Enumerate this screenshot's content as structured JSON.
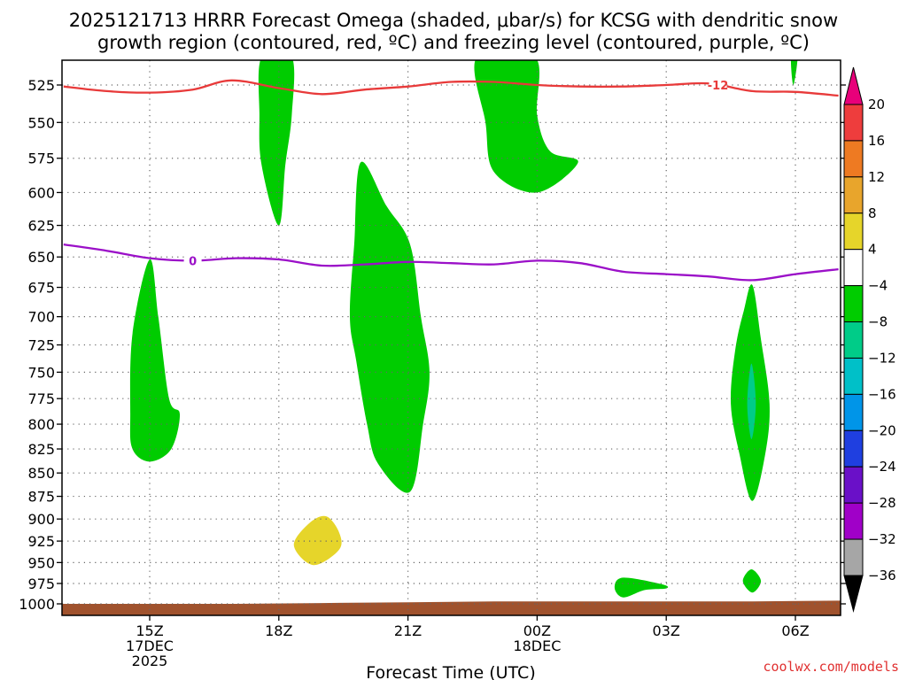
{
  "title_line1": "2025121713 HRRR Forecast Omega (shaded, μbar/s) for KCSG with dendritic snow",
  "title_line2": "growth region (contoured, red, ºC) and freezing level (contoured, purple, ºC)",
  "credit": "coolwx.com/models",
  "colors": {
    "frame": "#000000",
    "ground": "#a0522d",
    "dgz_contour": "#e83a3a",
    "freezing_contour": "#9b10c8",
    "grid": "#666666"
  },
  "chart_data": {
    "type": "time-height cross section",
    "xlabel": "Forecast Time (UTC)",
    "xlim_hours": [
      13,
      31
    ],
    "ylim_hpa": [
      1005,
      507
    ],
    "y_scale": "log-pressure",
    "grid": true,
    "yticks": [
      525,
      550,
      575,
      600,
      625,
      650,
      675,
      700,
      725,
      750,
      775,
      800,
      825,
      850,
      875,
      900,
      925,
      950,
      975,
      1000
    ],
    "xticks": [
      {
        "hour": 15,
        "lines": [
          "15Z",
          "17DEC",
          "2025"
        ]
      },
      {
        "hour": 18,
        "lines": [
          "18Z"
        ]
      },
      {
        "hour": 21,
        "lines": [
          "21Z"
        ]
      },
      {
        "hour": 24,
        "lines": [
          "00Z",
          "18DEC"
        ]
      },
      {
        "hour": 27,
        "lines": [
          "03Z"
        ]
      },
      {
        "hour": 30,
        "lines": [
          "06Z"
        ]
      }
    ],
    "colorbar": {
      "levels": [
        "20",
        "16",
        "12",
        "8",
        "4",
        "−4",
        "−8",
        "−12",
        "−16",
        "−20",
        "−24",
        "−28",
        "−32",
        "−36"
      ],
      "colors": [
        "#e8007a",
        "#ee3d3d",
        "#ee7a22",
        "#e8a52c",
        "#e6d52a",
        "#ffffff",
        "#00cc00",
        "#00cc88",
        "#00c0c8",
        "#0095e8",
        "#1f3fe0",
        "#6a10c8",
        "#a000c8",
        "#a6a6a6",
        "#000000"
      ]
    },
    "contours": [
      {
        "label": "-12",
        "color": "#e83a3a",
        "points": [
          [
            13,
            526
          ],
          [
            14,
            529
          ],
          [
            15,
            530
          ],
          [
            16,
            528
          ],
          [
            16.9,
            522
          ],
          [
            18,
            527
          ],
          [
            19,
            531
          ],
          [
            20,
            528
          ],
          [
            21,
            526
          ],
          [
            22,
            523
          ],
          [
            23,
            523
          ],
          [
            24,
            525
          ],
          [
            25,
            526
          ],
          [
            26,
            526
          ],
          [
            27,
            525
          ],
          [
            28,
            524
          ],
          [
            29,
            529
          ],
          [
            30,
            529.5
          ],
          [
            31,
            532
          ]
        ]
      },
      {
        "label": "0",
        "color": "#9b10c8",
        "points": [
          [
            13,
            640
          ],
          [
            14,
            645
          ],
          [
            15,
            651
          ],
          [
            16,
            653
          ],
          [
            17,
            651
          ],
          [
            18,
            652
          ],
          [
            19,
            657
          ],
          [
            20,
            656
          ],
          [
            21,
            654
          ],
          [
            22,
            655
          ],
          [
            23,
            656
          ],
          [
            24,
            653
          ],
          [
            25,
            655
          ],
          [
            26,
            662
          ],
          [
            27,
            664
          ],
          [
            28,
            666
          ],
          [
            29,
            669
          ],
          [
            30,
            664
          ],
          [
            31,
            660
          ]
        ]
      }
    ],
    "omega_regions": [
      {
        "level": "-4 to -8",
        "color": "#00cc00",
        "points": [
          [
            17.6,
            507
          ],
          [
            18.3,
            507
          ],
          [
            18.3,
            545
          ],
          [
            18.15,
            580
          ],
          [
            18,
            625
          ],
          [
            17.6,
            580
          ],
          [
            17.55,
            545
          ]
        ]
      },
      {
        "level": "-4 to -8",
        "color": "#00cc00",
        "points": [
          [
            22.6,
            507
          ],
          [
            23.95,
            507
          ],
          [
            24,
            545
          ],
          [
            24.3,
            570
          ],
          [
            24.95,
            578
          ],
          [
            24,
            600
          ],
          [
            23,
            585
          ],
          [
            22.8,
            550
          ]
        ]
      },
      {
        "level": "-4 to -8",
        "color": "#00cc00",
        "points": [
          [
            15,
            652
          ],
          [
            15.2,
            700
          ],
          [
            15.45,
            775
          ],
          [
            15.7,
            790
          ],
          [
            15.5,
            825
          ],
          [
            15,
            838
          ],
          [
            14.6,
            825
          ],
          [
            14.55,
            790
          ],
          [
            14.6,
            715
          ]
        ]
      },
      {
        "level": "-4 to -8",
        "color": "#00cc00",
        "points": [
          [
            19.9,
            578
          ],
          [
            20.5,
            610
          ],
          [
            21.05,
            640
          ],
          [
            21.3,
            700
          ],
          [
            21.5,
            750
          ],
          [
            21.35,
            800
          ],
          [
            21.05,
            870
          ],
          [
            20.3,
            840
          ],
          [
            20.05,
            800
          ],
          [
            19.8,
            740
          ],
          [
            19.65,
            700
          ],
          [
            19.75,
            640
          ]
        ]
      },
      {
        "level": "-4 to -8",
        "color": "#00cc00",
        "points": [
          [
            29,
            673
          ],
          [
            29.2,
            720
          ],
          [
            29.4,
            780
          ],
          [
            29.3,
            830
          ],
          [
            29,
            880
          ],
          [
            28.7,
            830
          ],
          [
            28.5,
            780
          ],
          [
            28.6,
            730
          ],
          [
            28.8,
            695
          ]
        ]
      },
      {
        "level": "-8 to -12",
        "color": "#00cc88",
        "points": [
          [
            28.98,
            742
          ],
          [
            29.08,
            780
          ],
          [
            28.98,
            815
          ],
          [
            28.88,
            780
          ]
        ]
      },
      {
        "level": "-4 to -8",
        "color": "#00cc00",
        "points": [
          [
            29.9,
            507
          ],
          [
            30.05,
            507
          ],
          [
            29.95,
            525
          ]
        ]
      },
      {
        "level": "-4 to -8",
        "color": "#00cc00",
        "points": [
          [
            26,
            968
          ],
          [
            26.9,
            976
          ],
          [
            27,
            981
          ],
          [
            26.5,
            983
          ],
          [
            26,
            992
          ],
          [
            25.8,
            980
          ]
        ]
      },
      {
        "level": "-4 to -8",
        "color": "#00cc00",
        "points": [
          [
            28.98,
            958
          ],
          [
            29.2,
            972
          ],
          [
            29,
            986
          ],
          [
            28.78,
            972
          ]
        ]
      },
      {
        "level": "4 to 8",
        "color": "#e6d52a",
        "points": [
          [
            19.1,
            897
          ],
          [
            19.4,
            915
          ],
          [
            19.4,
            935
          ],
          [
            18.8,
            953
          ],
          [
            18.35,
            930
          ],
          [
            18.7,
            905
          ]
        ]
      }
    ],
    "ground": [
      [
        13,
        1000
      ],
      [
        17,
        1000
      ],
      [
        19,
        999
      ],
      [
        21,
        998
      ],
      [
        23,
        997
      ],
      [
        25,
        997
      ],
      [
        27,
        997
      ],
      [
        29,
        997
      ],
      [
        31,
        996
      ]
    ]
  }
}
